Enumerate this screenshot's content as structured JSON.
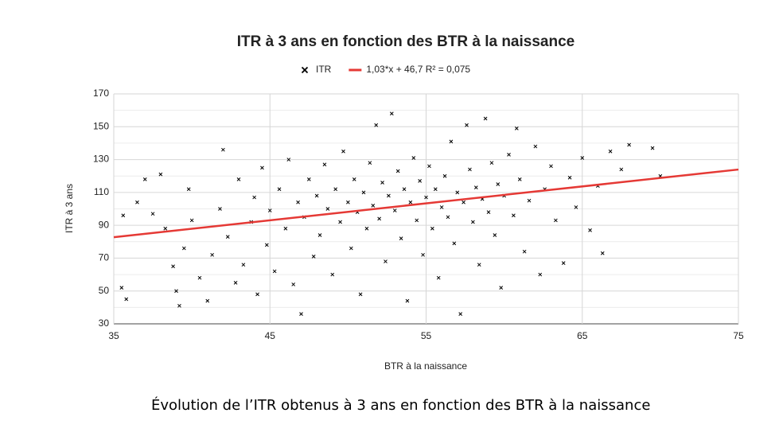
{
  "chart_data": {
    "type": "scatter",
    "title": "ITR à 3 ans en fonction des BTR à la naissance",
    "x_label": "BTR à la naissance",
    "y_label": "ITR à 3 ans",
    "xlim": [
      35,
      75
    ],
    "xticks": [
      35,
      45,
      55,
      65,
      75
    ],
    "ylim": [
      30,
      170
    ],
    "yticks": [
      30,
      50,
      70,
      90,
      110,
      130,
      150,
      170
    ],
    "yminorticks": [
      40,
      60,
      80,
      100,
      120,
      140,
      160
    ],
    "grid": true,
    "legend": "top",
    "series": [
      {
        "name": "ITR",
        "type": "scatter",
        "color": "#000000",
        "x": [
          35.5,
          35.8,
          35.6,
          36.5,
          37,
          37.5,
          38,
          38.3,
          38.8,
          39,
          39.2,
          39.5,
          39.8,
          40,
          40.5,
          41,
          41.3,
          41.8,
          42,
          42.3,
          42.8,
          43,
          43.3,
          43.8,
          44,
          44.2,
          44.5,
          44.8,
          45,
          45.3,
          45.6,
          46,
          46.2,
          46.5,
          46.8,
          47,
          47.2,
          47.5,
          47.8,
          48,
          48.2,
          48.5,
          48.7,
          49,
          49.2,
          49.5,
          49.7,
          50,
          50.2,
          50.4,
          50.6,
          50.8,
          51,
          51.2,
          51.4,
          51.6,
          51.8,
          52,
          52.2,
          52.4,
          52.6,
          52.8,
          53,
          53.2,
          53.4,
          53.6,
          53.8,
          54,
          54.2,
          54.4,
          54.6,
          54.8,
          55,
          55.2,
          55.4,
          55.6,
          55.8,
          56,
          56.2,
          56.4,
          56.6,
          56.8,
          57,
          57.2,
          57.4,
          57.6,
          57.8,
          58,
          58.2,
          58.4,
          58.6,
          58.8,
          59,
          59.2,
          59.4,
          59.6,
          59.8,
          60,
          60.3,
          60.6,
          60.8,
          61,
          61.3,
          61.6,
          62,
          62.3,
          62.6,
          63,
          63.3,
          63.8,
          64.2,
          64.6,
          65,
          65.5,
          66,
          66.3,
          66.8,
          67.5,
          68,
          69.5,
          70
        ],
        "values": [
          52,
          45,
          96,
          104,
          118,
          97,
          121,
          88,
          65,
          50,
          41,
          76,
          112,
          93,
          58,
          44,
          72,
          100,
          136,
          83,
          55,
          118,
          66,
          92,
          107,
          48,
          125,
          78,
          99,
          62,
          112,
          88,
          130,
          54,
          104,
          36,
          95,
          118,
          71,
          108,
          84,
          127,
          100,
          60,
          112,
          92,
          135,
          104,
          76,
          118,
          98,
          48,
          110,
          88,
          128,
          102,
          151,
          94,
          116,
          68,
          108,
          158,
          99,
          123,
          82,
          112,
          44,
          104,
          131,
          93,
          117,
          72,
          107,
          126,
          88,
          112,
          58,
          101,
          120,
          95,
          141,
          79,
          110,
          36,
          104,
          151,
          124,
          92,
          113,
          66,
          106,
          155,
          98,
          128,
          84,
          115,
          52,
          108,
          133,
          96,
          149,
          118,
          74,
          105,
          138,
          60,
          112,
          126,
          93,
          67,
          119,
          101,
          131,
          87,
          114,
          73,
          135,
          124,
          139,
          137,
          120
        ]
      },
      {
        "name": "1,03*x + 46,7 R² = 0,075",
        "type": "line",
        "color": "#e53935",
        "x": [
          35,
          75
        ],
        "values": [
          82.75,
          123.95
        ]
      }
    ]
  },
  "caption": "Évolution de l’ITR obtenus à 3 ans en fonction des BTR à la naissance"
}
